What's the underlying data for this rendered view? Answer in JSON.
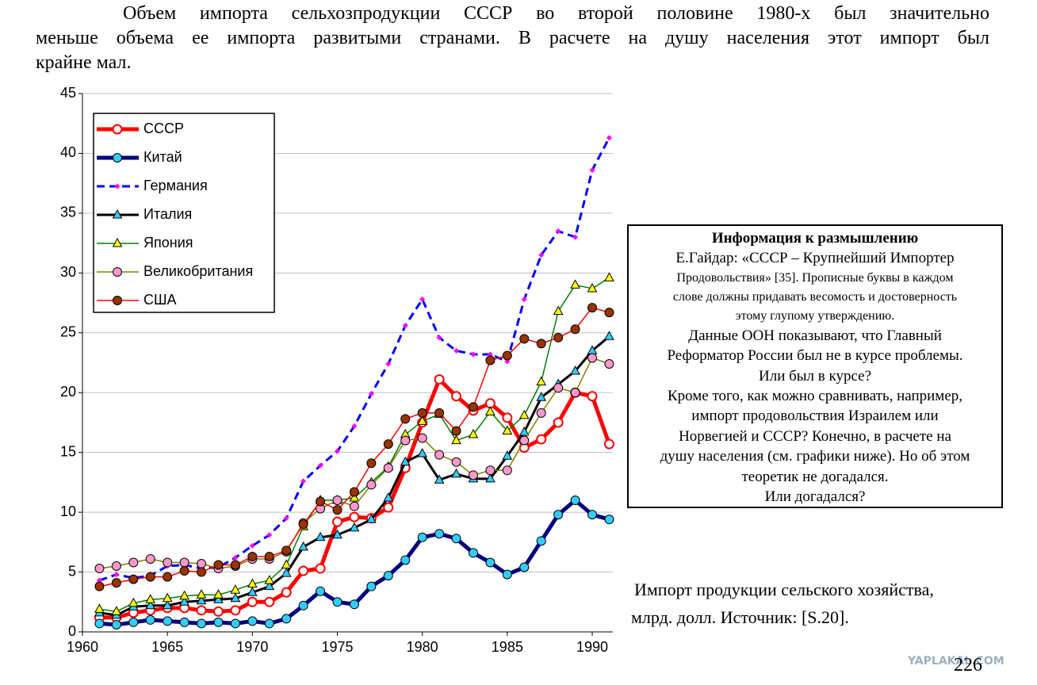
{
  "header": {
    "lines": [
      "Объем импорта сельхозпродукции СССР во второй половине 1980-х был значительно",
      "меньше объема ее импорта развитыми странами.  В расчете на душу населения этот импорт был",
      "крайне  мал."
    ]
  },
  "chart_data": {
    "type": "line",
    "x": [
      1961,
      1962,
      1963,
      1964,
      1965,
      1966,
      1967,
      1968,
      1969,
      1970,
      1971,
      1972,
      1973,
      1974,
      1975,
      1976,
      1977,
      1978,
      1979,
      1980,
      1981,
      1982,
      1983,
      1984,
      1985,
      1986,
      1987,
      1988,
      1989,
      1990,
      1991
    ],
    "xlim": [
      1960,
      1991.2
    ],
    "xticks": [
      1960,
      1965,
      1970,
      1975,
      1980,
      1985,
      1990
    ],
    "ylim": [
      0,
      45
    ],
    "yticks": [
      0,
      5,
      10,
      15,
      20,
      25,
      30,
      35,
      40,
      45
    ],
    "grid": true,
    "legend": "upper-left",
    "series": [
      {
        "name": "СССР",
        "color": "#ff0000",
        "marker": "circle",
        "marker_fill": "#ffffff",
        "line_style": "thick",
        "values": [
          1.2,
          1.2,
          1.6,
          1.8,
          2.0,
          2.0,
          1.8,
          1.7,
          1.8,
          2.5,
          2.5,
          3.3,
          5.1,
          5.3,
          9.2,
          9.6,
          9.5,
          10.4,
          13.7,
          17.5,
          21.1,
          19.7,
          18.5,
          19.1,
          17.9,
          15.4,
          16.1,
          17.5,
          20.0,
          19.7,
          15.7
        ]
      },
      {
        "name": "Китай",
        "color": "#000080",
        "marker": "circle",
        "marker_fill": "#33ccff",
        "line_style": "thick",
        "values": [
          0.7,
          0.6,
          0.8,
          1.0,
          0.9,
          0.8,
          0.7,
          0.8,
          0.7,
          0.9,
          0.7,
          1.1,
          2.2,
          3.4,
          2.5,
          2.3,
          3.8,
          4.7,
          6.0,
          7.9,
          8.2,
          7.8,
          6.6,
          5.8,
          4.8,
          5.4,
          7.6,
          9.8,
          11.0,
          9.8,
          9.4
        ]
      },
      {
        "name": "Германия",
        "color": "#0000ff",
        "marker": "diamond",
        "marker_fill": "#ff00ff",
        "line_style": "dashed",
        "values": [
          4.3,
          4.8,
          4.5,
          4.7,
          5.5,
          5.6,
          5.3,
          5.4,
          6.2,
          7.2,
          8.1,
          9.5,
          12.6,
          13.9,
          15.1,
          17.2,
          19.9,
          22.4,
          25.6,
          27.8,
          24.6,
          23.5,
          23.2,
          23.2,
          22.6,
          27.8,
          31.5,
          33.5,
          33.0,
          38.6,
          41.3
        ]
      },
      {
        "name": "Италия",
        "color": "#000000",
        "marker": "triangle",
        "marker_fill": "#33ccff",
        "line_style": "medium",
        "values": [
          1.6,
          1.4,
          2.1,
          2.2,
          2.2,
          2.5,
          2.6,
          2.7,
          2.8,
          3.3,
          3.8,
          4.9,
          7.1,
          7.9,
          8.1,
          8.7,
          9.4,
          11.2,
          14.2,
          14.9,
          12.7,
          13.2,
          12.8,
          12.8,
          14.7,
          16.7,
          19.6,
          20.7,
          21.8,
          23.5,
          24.7
        ]
      },
      {
        "name": "Япония",
        "color": "#008000",
        "marker": "triangle",
        "marker_fill": "#ffff00",
        "line_style": "thin",
        "values": [
          1.9,
          1.7,
          2.4,
          2.7,
          2.8,
          3.0,
          3.1,
          3.1,
          3.5,
          4.0,
          4.3,
          5.6,
          8.8,
          11.0,
          11.0,
          11.2,
          12.5,
          13.8,
          16.5,
          17.6,
          18.2,
          16.0,
          16.5,
          18.4,
          16.8,
          18.1,
          20.9,
          26.8,
          29.0,
          28.7,
          29.6
        ]
      },
      {
        "name": "Великобритания",
        "color": "#808000",
        "marker": "circle",
        "marker_fill": "#ff99cc",
        "line_style": "thin",
        "values": [
          5.3,
          5.5,
          5.8,
          6.1,
          5.8,
          5.8,
          5.7,
          5.3,
          5.5,
          6.1,
          6.1,
          6.7,
          9.1,
          10.3,
          11.0,
          10.5,
          12.3,
          13.7,
          16.0,
          16.2,
          14.8,
          14.2,
          13.1,
          13.5,
          13.5,
          16.0,
          18.3,
          20.4,
          20.0,
          22.9,
          22.4
        ]
      },
      {
        "name": "США",
        "color": "#ff0000",
        "marker": "circle",
        "marker_fill": "#993300",
        "line_style": "thin",
        "values": [
          3.8,
          4.1,
          4.4,
          4.6,
          4.6,
          5.1,
          5.0,
          5.6,
          5.6,
          6.3,
          6.3,
          6.8,
          9.0,
          10.9,
          10.2,
          11.7,
          14.1,
          15.7,
          17.8,
          18.3,
          18.3,
          16.8,
          18.8,
          22.7,
          23.1,
          24.5,
          24.1,
          24.6,
          25.3,
          27.1,
          26.7
        ]
      }
    ]
  },
  "info": {
    "title": "Информация к размышлению",
    "lines": [
      "Е.Гайдар: «СССР – Крупнейший Импортер",
      "Продовольствия» [35]. Прописные буквы в каждом",
      "слове должны придавать весомость и достоверность",
      "этому глупому утверждению.",
      "Данные ООН показывают, что Главный",
      "Реформатор России был не в курсе проблемы.",
      "Или был в курсе?",
      "Кроме того, как можно сравнивать, например,",
      "импорт продовольствия Израилем или",
      "Норвегией и СССР? Конечно, в расчете на",
      "душу населения (см. графики ниже). Но об этом",
      "теоретик не догадался.",
      "Или догадался?"
    ]
  },
  "caption": {
    "lines": [
      "Импорт продукции сельского хозяйства,",
      "млрд. долл. Источник: [S.20]."
    ]
  },
  "page_number": "226",
  "watermark": "YAPLAKAL.COM"
}
